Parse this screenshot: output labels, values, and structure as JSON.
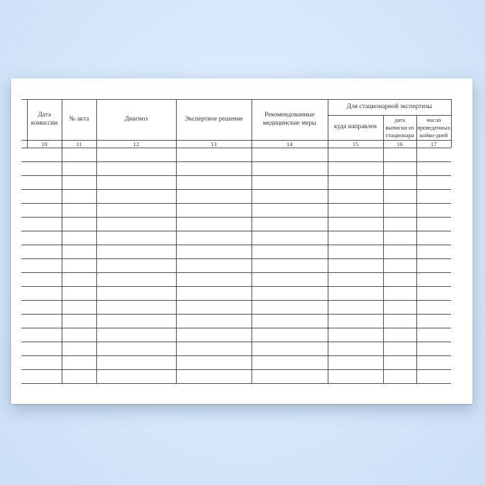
{
  "colors": {
    "background": "#d6e7fa",
    "paper": "#ffffff",
    "line": "#4d4d4d",
    "text": "#333333"
  },
  "table": {
    "group_header": "Для стационарной экспертизы",
    "columns": [
      {
        "label": "Дата\nкомиссии",
        "num": "10"
      },
      {
        "label": "№ акта",
        "num": "11"
      },
      {
        "label": "Диагноз",
        "num": "12"
      },
      {
        "label": "Экспертное решение",
        "num": "13"
      },
      {
        "label": "Рекомендованные\nмедицинские меры",
        "num": "14"
      },
      {
        "label": "куда направлен",
        "num": "15"
      },
      {
        "label": "дата\nвыписки из\nстационара",
        "num": "16"
      },
      {
        "label": "число\nпроведенных\nкойко-дней",
        "num": "17"
      }
    ],
    "body_rows": 17
  }
}
